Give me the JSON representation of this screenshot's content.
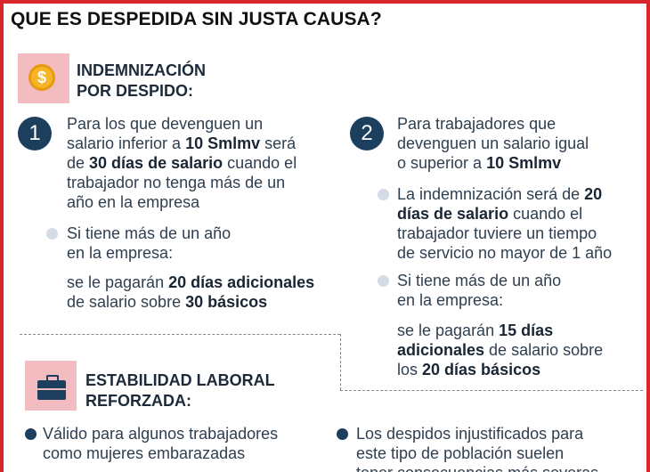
{
  "title": "QUE ES DESPEDIDA SIN JUSTA CAUSA?",
  "section1": {
    "heading_line1": "INDEMNIZACIÓN",
    "heading_line2": "POR DESPIDO:",
    "icon": "coin-dollar-icon",
    "icon_glyph": "$"
  },
  "case1": {
    "number": "1",
    "p1": "Para los que devenguen un",
    "p2a": "salario inferior a ",
    "p2b": "10 Smlmv",
    "p2c": " será",
    "p3a": "de ",
    "p3b": "30 días de salario",
    "p3c": " cuando el",
    "p4": "trabajador no tenga más de un",
    "p5": "año en la empresa",
    "bullet_line1": "Si tiene más de un año",
    "bullet_line2": "en la empresa:",
    "detail1a": "se le pagarán ",
    "detail1b": "20 días adicionales",
    "detail2a": "de salario sobre ",
    "detail2b": "30 básicos"
  },
  "case2": {
    "number": "2",
    "p1": "Para trabajadores que",
    "p2": "devenguen un salario igual",
    "p3a": "o superior a ",
    "p3b": "10 Smlmv",
    "b1_1a": "La indemnización será de ",
    "b1_1b": "20",
    "b1_2a": "días de salario",
    "b1_2b": " cuando el",
    "b1_3": "trabajador tuviere un tiempo",
    "b1_4": "de servicio no mayor de 1 año",
    "b2_line1": "Si tiene más de un año",
    "b2_line2": "en la empresa:",
    "d1a": "se le pagarán ",
    "d1b": "15 días",
    "d2a": "adicionales",
    "d2b": " de salario sobre",
    "d3a": "los ",
    "d3b": "20 días básicos"
  },
  "section2": {
    "heading_line1": "ESTABILIDAD LABORAL",
    "heading_line2": "REFORZADA:",
    "icon": "briefcase-icon",
    "left_line1": "Válido para algunos trabajadores",
    "left_line2": "como mujeres embarazadas",
    "right_line1": "Los despidos injustificados para",
    "right_line2": "este tipo de población suelen",
    "right_line3": "tener consecuencias más severas"
  },
  "colors": {
    "border": "#d9262a",
    "navy": "#1c3f5e",
    "pink": "#f3bcc0",
    "gold": "#f6b526"
  }
}
